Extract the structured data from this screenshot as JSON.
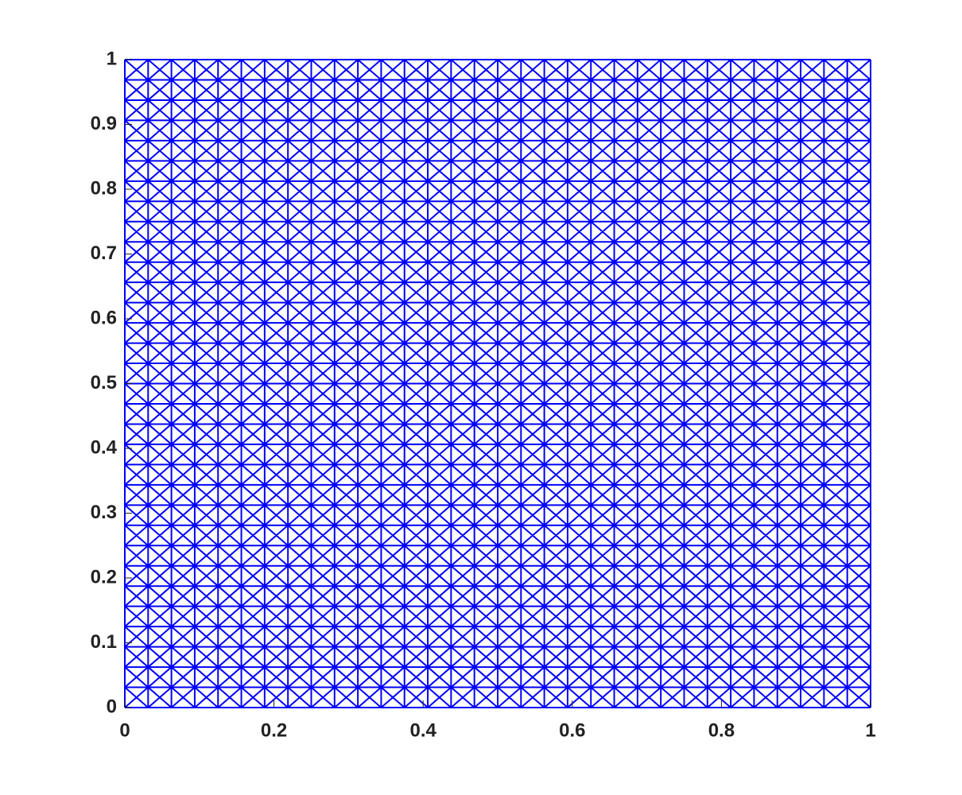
{
  "chart_data": {
    "type": "mesh",
    "color": "#0000ff",
    "xlim": [
      0,
      1
    ],
    "ylim": [
      0,
      1
    ],
    "xticks": [
      0,
      0.2,
      0.4,
      0.6,
      0.8,
      1
    ],
    "yticks": [
      0,
      0.1,
      0.2,
      0.3,
      0.4,
      0.5,
      0.6,
      0.7,
      0.8,
      0.9,
      1
    ]
  }
}
